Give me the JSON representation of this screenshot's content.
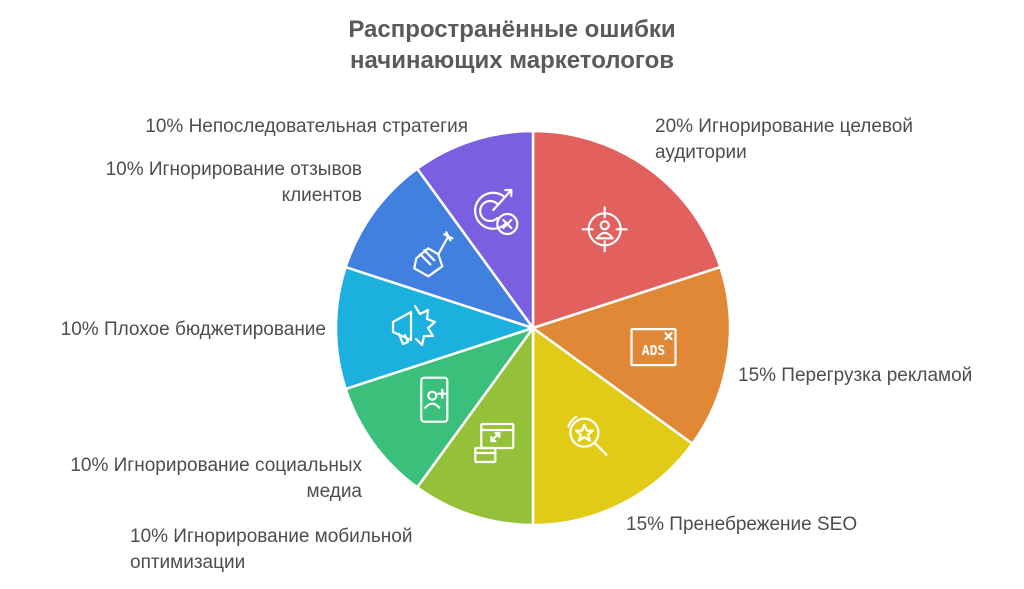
{
  "title_line1": "Распространённые ошибки",
  "title_line2": "начинающих маркетологов",
  "chart_data": {
    "type": "pie",
    "title": "Распространённые ошибки начинающих маркетологов",
    "slices": [
      {
        "label_lines": [
          "20% Игнорирование целевой",
          "аудитории"
        ],
        "value": 20,
        "color": "#e2605e",
        "icon": "target-person-icon"
      },
      {
        "label_lines": [
          "15% Перегрузка рекламой"
        ],
        "value": 15,
        "color": "#e08836",
        "icon": "ads-window-icon"
      },
      {
        "label_lines": [
          "15% Пренебрежение SEO"
        ],
        "value": 15,
        "color": "#e2cb17",
        "icon": "search-star-icon"
      },
      {
        "label_lines": [
          "10% Игнорирование мобильной",
          "оптимизации"
        ],
        "value": 10,
        "color": "#95c13a",
        "icon": "responsive-devices-icon"
      },
      {
        "label_lines": [
          "10% Игнорирование социальных",
          "медиа"
        ],
        "value": 10,
        "color": "#3bc07c",
        "icon": "mobile-add-user-icon"
      },
      {
        "label_lines": [
          "10% Плохое бюджетирование"
        ],
        "value": 10,
        "color": "#1cb0de",
        "icon": "megaphone-icon"
      },
      {
        "label_lines": [
          "10% Игнорирование отзывов",
          "клиентов"
        ],
        "value": 10,
        "color": "#4280df",
        "icon": "fist-fork-icon"
      },
      {
        "label_lines": [
          "10% Непоследовательная стратегия"
        ],
        "value": 10,
        "color": "#7a5fe0",
        "icon": "missed-target-icon"
      }
    ]
  }
}
